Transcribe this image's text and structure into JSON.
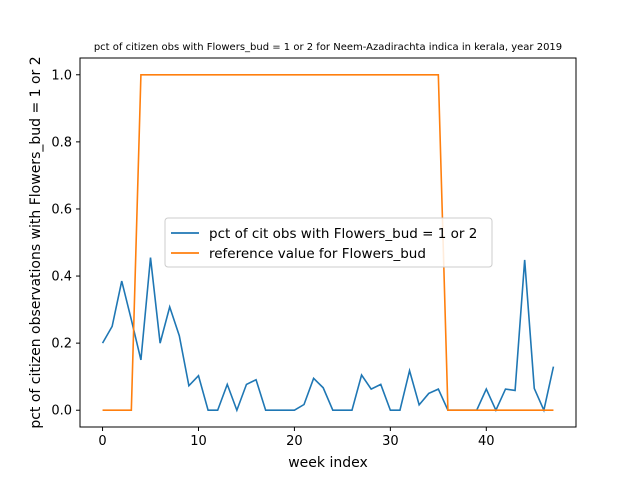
{
  "chart_data": {
    "type": "line",
    "title": "pct of citizen obs with Flowers_bud = 1 or 2 for Neem-Azadirachta indica in kerala, year 2019",
    "xlabel": "week index",
    "ylabel": "pct of citizen observations with Flowers_bud = 1 or 2",
    "xlim": [
      -2.35,
      49.35
    ],
    "ylim": [
      -0.05,
      1.05
    ],
    "xticks": [
      0,
      10,
      20,
      30,
      40
    ],
    "xtick_labels": [
      "0",
      "10",
      "20",
      "30",
      "40"
    ],
    "yticks": [
      0.0,
      0.2,
      0.4,
      0.6,
      0.8,
      1.0
    ],
    "ytick_labels": [
      "0.0",
      "0.2",
      "0.4",
      "0.6",
      "0.8",
      "1.0"
    ],
    "grid": false,
    "legend_position": "center-left",
    "series": [
      {
        "name": "pct of cit obs with Flowers_bud = 1 or 2",
        "color": "#1f77b4",
        "x": [
          0,
          1,
          2,
          3,
          4,
          5,
          6,
          7,
          8,
          9,
          10,
          11,
          12,
          13,
          14,
          15,
          16,
          17,
          18,
          19,
          20,
          21,
          22,
          23,
          24,
          25,
          26,
          27,
          28,
          29,
          30,
          31,
          32,
          33,
          34,
          35,
          36,
          37,
          38,
          39,
          40,
          41,
          42,
          43,
          44,
          45,
          46,
          47
        ],
        "values": [
          0.2,
          0.25,
          0.385,
          0.27,
          0.15,
          0.455,
          0.2,
          0.308,
          0.222,
          0.073,
          0.103,
          0.0,
          0.0,
          0.077,
          0.0,
          0.077,
          0.091,
          0.0,
          0.0,
          0.0,
          0.0,
          0.017,
          0.095,
          0.067,
          0.0,
          0.0,
          0.0,
          0.105,
          0.063,
          0.077,
          0.0,
          0.0,
          0.118,
          0.016,
          0.05,
          0.063,
          0.0,
          0.0,
          0.0,
          0.0,
          0.063,
          0.0,
          0.063,
          0.059,
          0.448,
          0.065,
          0.0,
          0.13
        ]
      },
      {
        "name": "reference value for Flowers_bud",
        "color": "#ff7f0e",
        "x": [
          0,
          1,
          2,
          3,
          4,
          5,
          6,
          7,
          8,
          9,
          10,
          11,
          12,
          13,
          14,
          15,
          16,
          17,
          18,
          19,
          20,
          21,
          22,
          23,
          24,
          25,
          26,
          27,
          28,
          29,
          30,
          31,
          32,
          33,
          34,
          35,
          36,
          37,
          38,
          39,
          40,
          41,
          42,
          43,
          44,
          45,
          46,
          47
        ],
        "values": [
          0,
          0,
          0,
          0,
          1,
          1,
          1,
          1,
          1,
          1,
          1,
          1,
          1,
          1,
          1,
          1,
          1,
          1,
          1,
          1,
          1,
          1,
          1,
          1,
          1,
          1,
          1,
          1,
          1,
          1,
          1,
          1,
          1,
          1,
          1,
          1,
          0,
          0,
          0,
          0,
          0,
          0,
          0,
          0,
          0,
          0,
          0,
          0
        ]
      }
    ]
  }
}
